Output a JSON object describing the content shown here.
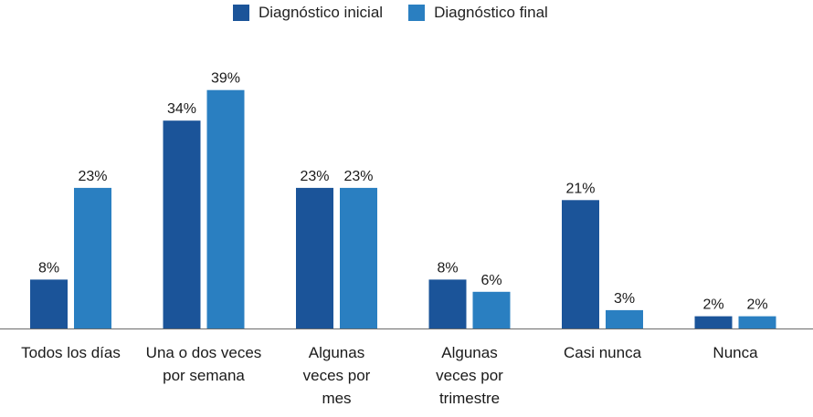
{
  "chart_data": {
    "type": "bar",
    "categories": [
      [
        "Todos los días"
      ],
      [
        "Una o dos veces",
        "por semana"
      ],
      [
        "Algunas",
        "veces por",
        "mes"
      ],
      [
        "Algunas",
        "veces por",
        "trimestre"
      ],
      [
        "Casi nunca"
      ],
      [
        "Nunca"
      ]
    ],
    "series": [
      {
        "name": "Diagnóstico inicial",
        "color": "#1B5499",
        "values": [
          8,
          34,
          23,
          8,
          21,
          2
        ]
      },
      {
        "name": "Diagnóstico final",
        "color": "#2A7FC1",
        "values": [
          23,
          39,
          23,
          6,
          3,
          2
        ]
      }
    ],
    "value_suffix": "%",
    "ylim": [
      0,
      45
    ],
    "legend_position": "top-center",
    "grid": false
  }
}
